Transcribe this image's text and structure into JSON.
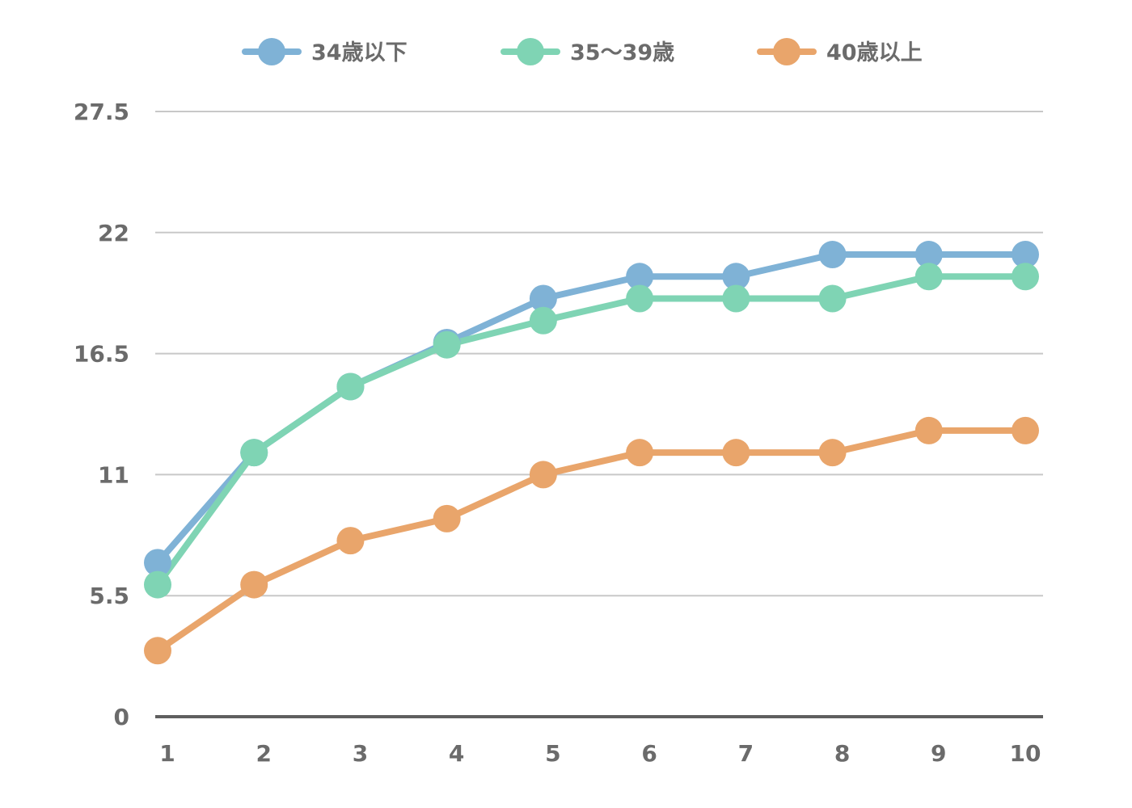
{
  "chart_data": {
    "type": "line",
    "title": "",
    "xlabel": "",
    "ylabel": "",
    "categories": [
      "1",
      "2",
      "3",
      "4",
      "5",
      "6",
      "7",
      "8",
      "9",
      "10"
    ],
    "y_ticks": [
      "0",
      "5.5",
      "11",
      "16.5",
      "22",
      "27.5"
    ],
    "ylim": [
      0,
      27.5
    ],
    "grid": true,
    "legend_position": "top",
    "series": [
      {
        "name": "34歳以下",
        "color": "#7fb2d6",
        "values": [
          7,
          12,
          15,
          17,
          19,
          20,
          20,
          21,
          21,
          21
        ]
      },
      {
        "name": "35～39歳",
        "color": "#7fd4b4",
        "values": [
          6,
          12,
          15,
          16.9,
          18,
          19,
          19,
          19,
          20,
          20
        ]
      },
      {
        "name": "40歳以上",
        "color": "#e9a56b",
        "values": [
          3,
          6,
          8,
          9,
          11,
          12,
          12,
          12,
          13,
          13
        ]
      }
    ]
  }
}
